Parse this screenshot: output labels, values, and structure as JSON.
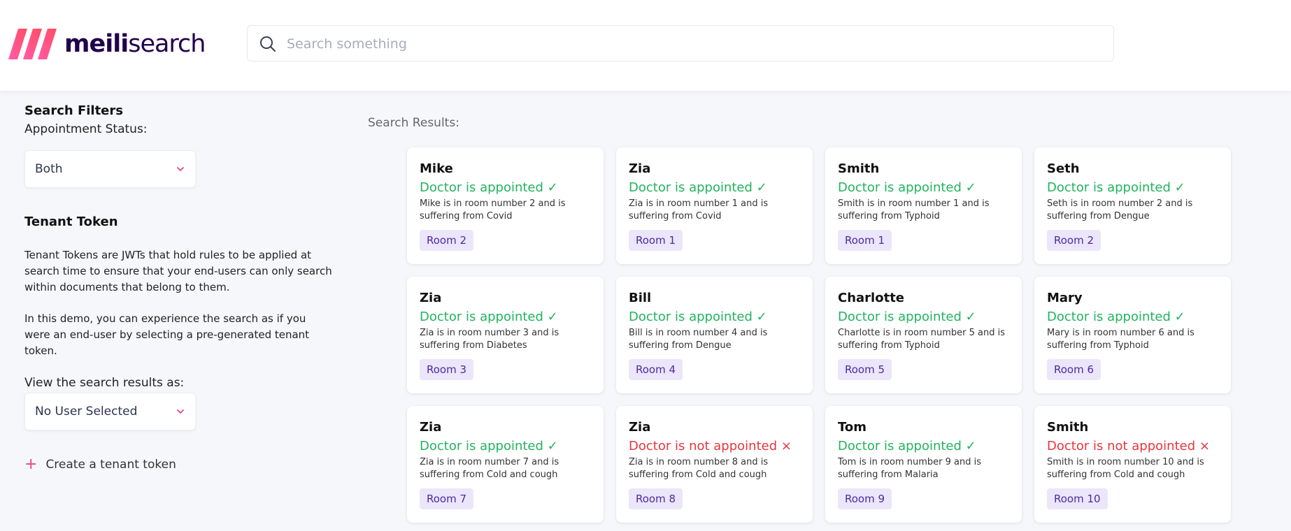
{
  "header": {
    "logo_bold": "meili",
    "logo_light": "search",
    "search_placeholder": "Search something"
  },
  "sidebar": {
    "filters_title": "Search Filters",
    "appointment_label": "Appointment Status:",
    "appointment_value": "Both",
    "tenant_title": "Tenant Token",
    "tenant_desc_1": "Tenant Tokens are JWTs that hold rules to be applied at search time to ensure that your end-users can only search within documents that belong to them.",
    "tenant_desc_2": "In this demo, you can experience the search as if you were an end-user by selecting a pre-generated tenant token.",
    "view_as_label": "View the search results as:",
    "view_as_value": "No User Selected",
    "create_label": "Create a tenant token"
  },
  "results": {
    "label": "Search Results:",
    "cards": [
      {
        "name": "Mike",
        "status": "Doctor is appointed ✓",
        "appointed": true,
        "desc": "Mike is in room number 2 and is suffering from Covid",
        "room": "Room 2"
      },
      {
        "name": "Zia",
        "status": "Doctor is appointed ✓",
        "appointed": true,
        "desc": "Zia is in room number 1 and is suffering from Covid",
        "room": "Room 1"
      },
      {
        "name": "Smith",
        "status": "Doctor is appointed ✓",
        "appointed": true,
        "desc": "Smith is in room number 1 and is suffering from Typhoid",
        "room": "Room 1"
      },
      {
        "name": "Seth",
        "status": "Doctor is appointed ✓",
        "appointed": true,
        "desc": "Seth is in room number 2 and is suffering from Dengue",
        "room": "Room 2"
      },
      {
        "name": "Zia",
        "status": "Doctor is appointed ✓",
        "appointed": true,
        "desc": "Zia is in room number 3 and is suffering from Diabetes",
        "room": "Room 3"
      },
      {
        "name": "Bill",
        "status": "Doctor is appointed ✓",
        "appointed": true,
        "desc": "Bill is in room number 4 and is suffering from Dengue",
        "room": "Room 4"
      },
      {
        "name": "Charlotte",
        "status": "Doctor is appointed ✓",
        "appointed": true,
        "desc": "Charlotte is in room number 5 and is suffering from Typhoid",
        "room": "Room 5"
      },
      {
        "name": "Mary",
        "status": "Doctor is appointed ✓",
        "appointed": true,
        "desc": "Mary is in room number 6 and is suffering from Typhoid",
        "room": "Room 6"
      },
      {
        "name": "Zia",
        "status": "Doctor is appointed ✓",
        "appointed": true,
        "desc": "Zia is in room number 7 and is suffering from Cold and cough",
        "room": "Room 7"
      },
      {
        "name": "Zia",
        "status": "Doctor is not appointed ×",
        "appointed": false,
        "desc": "Zia is in room number 8 and is suffering from Cold and cough",
        "room": "Room 8"
      },
      {
        "name": "Tom",
        "status": "Doctor is appointed ✓",
        "appointed": true,
        "desc": "Tom is in room number 9 and is suffering from Malaria",
        "room": "Room 9"
      },
      {
        "name": "Smith",
        "status": "Doctor is not appointed ×",
        "appointed": false,
        "desc": "Smith is in room number 10 and is suffering from Cold and cough",
        "room": "Room 10"
      }
    ]
  },
  "colors": {
    "brand_dark": "#21004b",
    "brand_pink": "#ff4f81",
    "appointed": "#22b35e",
    "not_appointed": "#e8353e",
    "room_badge_bg": "#ece6fb"
  }
}
